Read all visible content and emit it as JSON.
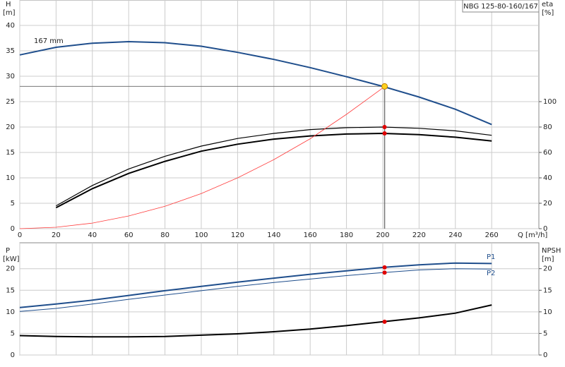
{
  "chart_data": [
    {
      "type": "line",
      "title": "NBG 125-80-160/167",
      "ylabel": "H",
      "yunit": "[m]",
      "y2label": "eta",
      "y2unit": "[%]",
      "xlabel": "Q [m³/h]",
      "x": [
        0,
        20,
        40,
        60,
        80,
        100,
        120,
        140,
        160,
        180,
        200,
        220,
        240,
        260
      ],
      "xlim": [
        0,
        286
      ],
      "xticks": [
        0,
        20,
        40,
        60,
        80,
        100,
        120,
        140,
        160,
        180,
        200,
        220,
        240,
        260
      ],
      "ylim": [
        0,
        45
      ],
      "yticks": [
        0,
        5,
        10,
        15,
        20,
        25,
        30,
        35,
        40
      ],
      "y2lim": [
        0,
        180
      ],
      "y2ticks": [
        0,
        20,
        40,
        60,
        80,
        100
      ],
      "grid": true,
      "series": [
        {
          "name": "167 mm",
          "color": "#1f4e8c",
          "line_width": 2,
          "values": [
            34.2,
            35.7,
            36.5,
            36.8,
            36.6,
            35.9,
            34.7,
            33.3,
            31.7,
            29.9,
            28,
            25.9,
            23.5,
            20.5
          ]
        },
        {
          "color": "#000000",
          "line_width": 1.2,
          "axis": "y2",
          "values": [
            null,
            18,
            34,
            47,
            57,
            65,
            71,
            75,
            78,
            79.5,
            80,
            79,
            77,
            73.5
          ]
        },
        {
          "color": "#000000",
          "line_width": 2,
          "axis": "y2",
          "values": [
            null,
            16.5,
            31.5,
            43.5,
            53,
            61,
            66.5,
            70.5,
            73,
            74.5,
            75,
            74,
            72,
            69
          ]
        },
        {
          "color": "#ff3b3b",
          "line_width": 0.8,
          "values": [
            0,
            0.28,
            1.1,
            2.5,
            4.4,
            6.9,
            10,
            13.6,
            17.7,
            22.5,
            27.7,
            null,
            null,
            null
          ]
        }
      ],
      "duty_point": {
        "q": 201,
        "h": 28,
        "eta": [
          80,
          75
        ]
      }
    },
    {
      "type": "line",
      "ylabel": "P",
      "yunit": "[kW]",
      "y2label": "NPSH",
      "y2unit": "[m]",
      "x": [
        0,
        20,
        40,
        60,
        80,
        100,
        120,
        140,
        160,
        180,
        200,
        220,
        240,
        260
      ],
      "xlim": [
        0,
        286
      ],
      "ylim": [
        0,
        26
      ],
      "yticks": [
        0,
        5,
        10,
        15,
        20
      ],
      "y2lim": [
        0,
        26
      ],
      "y2ticks": [
        0,
        5,
        10,
        15,
        20
      ],
      "grid": true,
      "series": [
        {
          "name": "P1",
          "color": "#1f4e8c",
          "line_width": 2,
          "values": [
            11,
            11.8,
            12.7,
            13.8,
            14.9,
            15.9,
            16.9,
            17.8,
            18.7,
            19.5,
            20.3,
            20.9,
            21.3,
            21.2
          ]
        },
        {
          "name": "P2",
          "color": "#1f4e8c",
          "line_width": 1,
          "values": [
            10.1,
            10.8,
            11.8,
            12.9,
            13.9,
            14.9,
            15.9,
            16.8,
            17.6,
            18.4,
            19.1,
            19.7,
            20,
            19.9
          ]
        },
        {
          "color": "#000000",
          "line_width": 2,
          "axis": "y2",
          "values": [
            4.5,
            4.3,
            4.2,
            4.2,
            4.3,
            4.6,
            4.9,
            5.4,
            6,
            6.8,
            7.7,
            8.6,
            9.7,
            11.6
          ]
        }
      ],
      "duty_point": {
        "q": 201,
        "values": [
          20.3,
          19.1,
          7.7
        ]
      }
    }
  ]
}
